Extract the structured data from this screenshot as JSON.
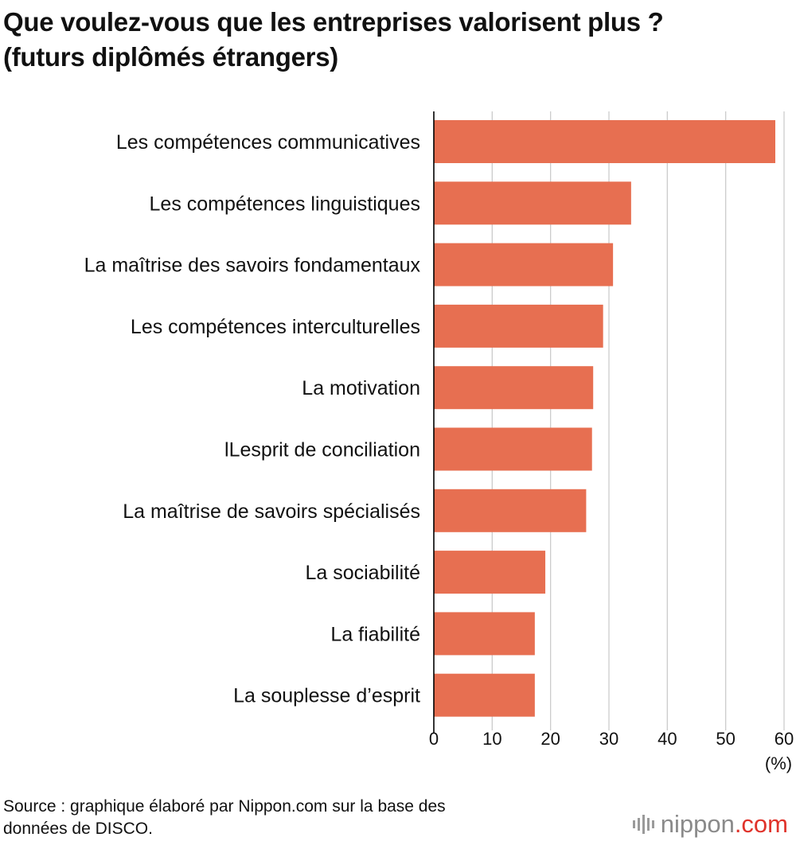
{
  "header": {
    "title_line1": "Que voulez-vous que les entreprises valorisent plus ?",
    "title_line2": "(futurs diplômés étrangers)"
  },
  "footer": {
    "source_line1": "Source : graphique élaboré par Nippon.com sur la base des",
    "source_line2": "données de DISCO.",
    "brand_main": "nippon",
    "brand_tld": ".com"
  },
  "colors": {
    "bar": "#e76f51",
    "grid": "#cccccc",
    "axis": "#000000",
    "brand_red": "#e0332b"
  },
  "chart_data": {
    "type": "bar",
    "orientation": "horizontal",
    "title": "Que voulez-vous que les entreprises valorisent plus ? (futurs diplômés étrangers)",
    "categories": [
      "Les compétences communicatives",
      "Les compétences linguistiques",
      "La maîtrise des savoirs fondamentaux",
      "Les compétences interculturelles",
      "La motivation",
      "lLesprit de conciliation",
      "La maîtrise de savoirs spécialisés",
      "La sociabilité",
      "La fiabilité",
      "La souplesse d’esprit"
    ],
    "values": [
      58.5,
      33.8,
      30.7,
      29.0,
      27.3,
      27.1,
      26.1,
      19.1,
      17.3,
      17.3
    ],
    "xlim": [
      0,
      60
    ],
    "xticks": [
      "0",
      "10",
      "20",
      "30",
      "40",
      "50",
      "60"
    ],
    "xlabel": "(%)",
    "grid": true
  }
}
